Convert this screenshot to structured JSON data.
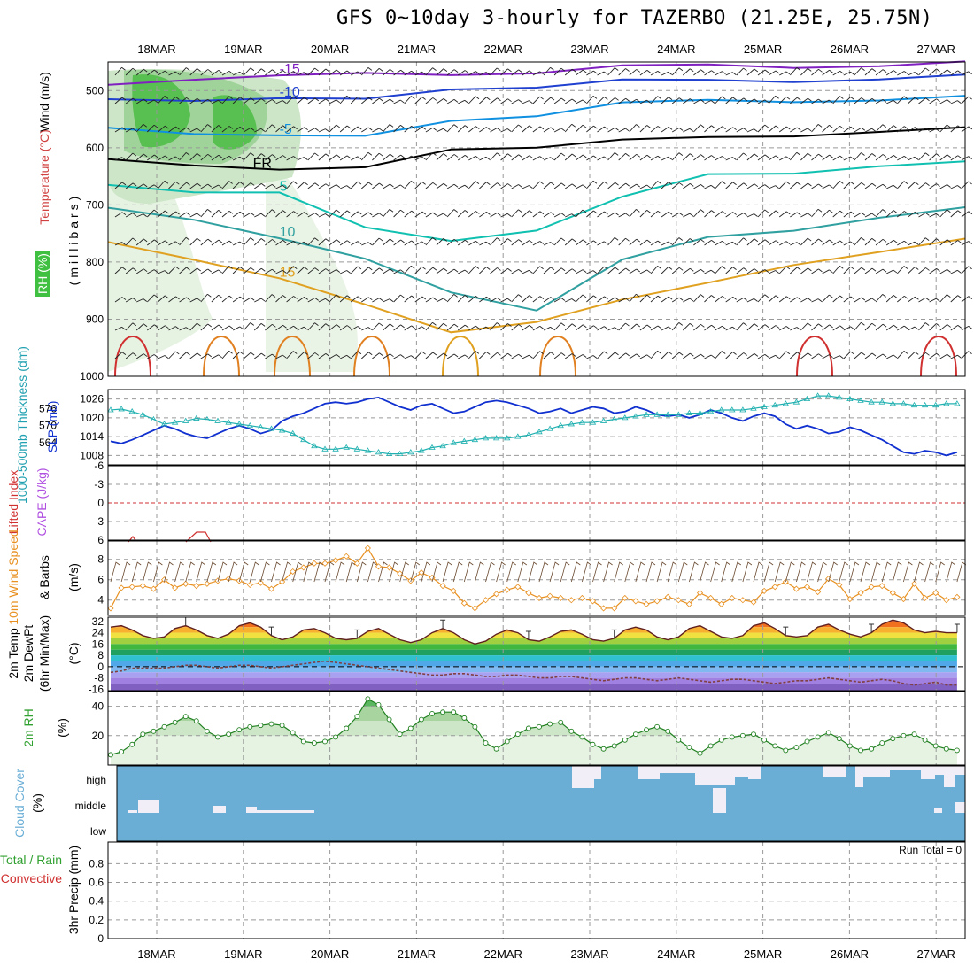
{
  "title": "GFS 0~10day 3-hourly for TAZERBO (21.25E, 25.75N)",
  "dates": [
    "18MAR",
    "19MAR",
    "20MAR",
    "21MAR",
    "22MAR",
    "23MAR",
    "24MAR",
    "25MAR",
    "26MAR",
    "27MAR"
  ],
  "panel_labels": {
    "p1_wind": "Wind (m/s)",
    "p1_temp": "Temperature (°C)",
    "p1_mb": "(millibars)",
    "p1_rh": "RH (%)",
    "p2_thick": "1000-500mb Thickness (dm)",
    "p2_slp": "SLP (mb)",
    "p3_li": "Lifted Index",
    "p3_cape": "CAPE (J/kg)",
    "p4_wind": "10m Wind Speed",
    "p4_barbs": "& Barbs",
    "p4_units": "(m/s)",
    "p5_temp": "2m Temp",
    "p5_dew": "2m DewPt",
    "p5_minmax": "(6hr Min/Max)",
    "p5_units": "(°C)",
    "p6_rh": "2m RH",
    "p6_units": "(%)",
    "p7_cloud": "Cloud Cover",
    "p7_units": "(%)",
    "p8_total": "Total / Rain",
    "p8_conv": "Convective",
    "p8_precip": "3hr Precip (mm)",
    "run_total": "Run Total = 0"
  },
  "colors": {
    "slp": "#1030d0",
    "thick": "#20b0b0",
    "wind": "#e89020",
    "rh": "#30a030",
    "cloud": "#6aaed6",
    "li": "#d03030",
    "cape": "#b050e0"
  },
  "chart_data": [
    {
      "type": "line",
      "title": "Upper air cross-section",
      "ylabel": "(millibars)",
      "ytick_labels": [
        "500",
        "600",
        "700",
        "800",
        "900",
        "1000"
      ],
      "ylim": [
        450,
        1000
      ],
      "temperature_contour_labels": [
        "-15",
        "-10",
        "-5",
        "FR",
        "5",
        "10",
        "15"
      ],
      "contours": [
        {
          "name": "-15",
          "color": "#8020c0",
          "p": [
            490,
            475,
            475,
            475,
            470,
            465,
            460,
            458,
            455,
            455,
            455
          ]
        },
        {
          "name": "-10",
          "color": "#2040d0",
          "p": [
            515,
            512,
            515,
            520,
            495,
            490,
            485,
            485,
            480,
            478,
            478
          ]
        },
        {
          "name": "-5",
          "color": "#1090e0",
          "p": [
            565,
            570,
            580,
            585,
            550,
            540,
            525,
            520,
            515,
            515,
            515
          ]
        },
        {
          "name": "FR",
          "color": "#000000",
          "p": [
            620,
            625,
            640,
            640,
            600,
            595,
            590,
            585,
            575,
            570,
            570
          ]
        },
        {
          "name": "5",
          "color": "#10c0b0",
          "p": [
            665,
            672,
            680,
            745,
            760,
            740,
            690,
            650,
            640,
            630,
            630
          ]
        },
        {
          "name": "10",
          "color": "#30a0a0",
          "p": [
            705,
            720,
            760,
            800,
            850,
            880,
            800,
            760,
            740,
            720,
            710
          ]
        },
        {
          "name": "15",
          "color": "#e0a020",
          "p": [
            765,
            790,
            830,
            880,
            920,
            900,
            870,
            840,
            800,
            780,
            765
          ]
        }
      ]
    },
    {
      "type": "line",
      "ylabel": "1000-500mb Thickness (dm) / SLP (mb)",
      "ytick_labels_left": [
        "576",
        "570",
        "564"
      ],
      "ytick_labels_right": [
        "1026",
        "1020",
        "1014",
        "1008"
      ],
      "ylim": [
        1005,
        1029
      ],
      "x": [
        0,
        1,
        2,
        3,
        4,
        5,
        6,
        7,
        8,
        9,
        10,
        11,
        12,
        13,
        14,
        15,
        16,
        17,
        18,
        19,
        20,
        21,
        22,
        23,
        24,
        25,
        26,
        27,
        28,
        29,
        30,
        31,
        32,
        33,
        34,
        35,
        36,
        37,
        38,
        39,
        40,
        41,
        42,
        43,
        44,
        45,
        46,
        47,
        48,
        49,
        50,
        51,
        52,
        53,
        54,
        55,
        56,
        57,
        58,
        59,
        60,
        61,
        62,
        63,
        64,
        65,
        66,
        67,
        68,
        69,
        70,
        71,
        72,
        73,
        74,
        75,
        76,
        77,
        78,
        79
      ],
      "series": [
        {
          "name": "SLP (mb)",
          "values": [
            1012.5,
            1011.8,
            1013,
            1014.5,
            1016,
            1017.5,
            1016.5,
            1015,
            1014,
            1013.5,
            1015,
            1016.5,
            1017.5,
            1016.5,
            1015,
            1016,
            1019,
            1020.5,
            1021.5,
            1023,
            1024.5,
            1025,
            1024.5,
            1025,
            1026,
            1026.5,
            1025,
            1023.5,
            1022.5,
            1024,
            1024.5,
            1023,
            1021.5,
            1022,
            1023.5,
            1025,
            1025.5,
            1025,
            1024,
            1023,
            1021.5,
            1022,
            1023,
            1021.5,
            1022.5,
            1023.5,
            1023,
            1021.5,
            1022,
            1023.5,
            1022.5,
            1021,
            1020.5,
            1021,
            1020,
            1021,
            1022.5,
            1021.5,
            1020,
            1019,
            1020.5,
            1021.5,
            1020.5,
            1018,
            1016.5,
            1017.5,
            1016.5,
            1015,
            1015.5,
            1017,
            1016,
            1014.5,
            1013,
            1011,
            1009,
            1008.5,
            1009.5,
            1009,
            1008,
            1009
          ]
        },
        {
          "name": "1000-500mb Thickness (dm)",
          "values": [
            1022.5,
            1022.8,
            1022,
            1021,
            1019.5,
            1018,
            1018.5,
            1019,
            1019.8,
            1019.5,
            1019,
            1018.5,
            1018,
            1017.5,
            1017,
            1016.5,
            1016,
            1015,
            1013,
            1011,
            1010,
            1010,
            1010.5,
            1010,
            1009.5,
            1009,
            1008.5,
            1008.5,
            1009,
            1009.5,
            1010.5,
            1011,
            1012,
            1012.5,
            1013,
            1013.5,
            1013.5,
            1013.5,
            1014,
            1014.5,
            1015.5,
            1016.5,
            1017.5,
            1018,
            1018.5,
            1018.5,
            1019,
            1019.5,
            1020,
            1020.5,
            1021,
            1021,
            1021,
            1021,
            1021.5,
            1021.5,
            1022,
            1022.5,
            1022.5,
            1022.5,
            1023,
            1023.5,
            1024,
            1024.5,
            1025,
            1026,
            1027,
            1027,
            1026.5,
            1026,
            1025.5,
            1025,
            1025,
            1024.5,
            1024.5,
            1024,
            1024,
            1024,
            1024.5,
            1024.5
          ]
        }
      ]
    },
    {
      "type": "line",
      "ylabel": "Lifted Index / CAPE (J/kg)",
      "ytick_labels": [
        "6",
        "3",
        "0",
        "-3",
        "-6"
      ],
      "ylim": [
        -6,
        6
      ],
      "series": [
        {
          "name": "Lifted Index",
          "x": [
            1.5,
            2.3,
            7.6,
            8.1,
            8.8,
            9.4
          ],
          "values": [
            -5.5,
            -6,
            -5,
            -4,
            -4,
            -6
          ]
        }
      ]
    },
    {
      "type": "line",
      "ylabel": "10m Wind Speed & Barbs (m/s)",
      "ytick_labels": [
        "8",
        "6",
        "4"
      ],
      "ylim": [
        2.5,
        9.8
      ],
      "series": [
        {
          "name": "10m Wind Speed",
          "values": [
            3.2,
            5.2,
            5.3,
            5.4,
            5.1,
            6,
            5.2,
            5.6,
            5.4,
            5.6,
            5.9,
            6.1,
            5.9,
            5.5,
            5.7,
            5.1,
            5.8,
            6.8,
            7.2,
            7.6,
            7.6,
            7.9,
            8.3,
            7.6,
            9.1,
            7.3,
            7.2,
            6.6,
            5.9,
            6.7,
            6.2,
            5.4,
            4.9,
            3.7,
            3.2,
            4,
            4.6,
            5,
            5.3,
            4.7,
            4.2,
            4.4,
            4.2,
            4,
            4.2,
            3.9,
            3.2,
            3.2,
            4.2,
            3.9,
            3.6,
            3.9,
            4.3,
            4,
            3.6,
            4.7,
            4.2,
            3.6,
            4.2,
            4,
            3.8,
            4.9,
            5.3,
            5.8,
            5.1,
            5.3,
            4.8,
            6.1,
            5.5,
            4.1,
            4.7,
            5.3,
            5.4,
            4.7,
            4.1,
            5.6,
            4.2,
            4.7,
            4,
            4.3
          ]
        }
      ]
    },
    {
      "type": "area",
      "ylabel": "2m Temp / 2m DewPt (6hr Min/Max) (°C)",
      "ytick_labels": [
        "32",
        "24",
        "16",
        "8",
        "0",
        "-8",
        "-16"
      ],
      "ylim": [
        -17,
        35
      ],
      "series": [
        {
          "name": "2m Temp",
          "values": [
            28,
            29,
            26,
            22,
            20,
            21,
            27,
            29,
            26,
            22,
            20,
            23,
            29,
            31,
            28,
            22,
            19,
            21,
            26,
            27,
            24,
            20,
            19,
            20,
            25,
            27,
            23,
            19,
            17,
            19,
            24,
            27,
            24,
            19,
            16,
            18,
            23,
            26,
            24,
            19,
            18,
            21,
            25,
            26,
            23,
            19,
            18,
            20,
            26,
            28,
            26,
            21,
            19,
            21,
            27,
            29,
            25,
            21,
            20,
            22,
            29,
            31,
            27,
            22,
            21,
            22,
            28,
            30,
            26,
            23,
            21,
            24,
            30,
            33,
            31,
            26,
            24,
            25,
            24,
            24
          ]
        },
        {
          "name": "2m DewPt",
          "values": [
            -4,
            -3,
            -1,
            -1,
            -1,
            -1,
            0,
            1,
            1,
            0,
            -1,
            0,
            1,
            1,
            0,
            -1,
            0,
            1,
            2,
            3,
            4,
            3,
            2,
            1,
            0,
            -1,
            -2,
            -3,
            -4,
            -5,
            -6,
            -6,
            -5,
            -5,
            -6,
            -7,
            -7,
            -6,
            -6,
            -7,
            -8,
            -8,
            -7,
            -7,
            -8,
            -9,
            -10,
            -9,
            -8,
            -8,
            -9,
            -10,
            -9,
            -8,
            -9,
            -10,
            -11,
            -10,
            -9,
            -9,
            -10,
            -11,
            -12,
            -11,
            -10,
            -10,
            -9,
            -8,
            -9,
            -10,
            -11,
            -10,
            -9,
            -10,
            -12,
            -13,
            -12,
            -11,
            -13,
            -13
          ]
        }
      ]
    },
    {
      "type": "area",
      "ylabel": "2m RH (%)",
      "ytick_labels": [
        "40",
        "20"
      ],
      "ylim": [
        0,
        50
      ],
      "series": [
        {
          "name": "2m RH",
          "values": [
            7,
            9,
            14,
            21,
            23,
            26,
            29,
            33,
            30,
            23,
            19,
            21,
            24,
            26,
            27,
            28,
            27,
            22,
            16,
            15,
            16,
            19,
            25,
            33,
            45,
            41,
            31,
            21,
            25,
            31,
            35,
            36,
            36,
            32,
            26,
            15,
            11,
            16,
            21,
            25,
            26,
            28,
            29,
            23,
            19,
            14,
            11,
            13,
            17,
            21,
            24,
            26,
            23,
            17,
            12,
            8,
            13,
            17,
            19,
            20,
            21,
            17,
            13,
            10,
            12,
            16,
            19,
            22,
            18,
            13,
            10,
            11,
            15,
            18,
            20,
            21,
            17,
            13,
            11,
            10
          ]
        }
      ]
    },
    {
      "type": "bar",
      "ylabel": "Cloud Cover (%)",
      "ytick_labels": [
        "high",
        "middle",
        "low"
      ],
      "ylim": [
        0,
        100
      ]
    },
    {
      "type": "bar",
      "ylabel": "3hr Precip (mm)",
      "ytick_labels": [
        "0.8",
        "0.6",
        "0.4",
        "0.2",
        "0"
      ],
      "ylim": [
        0,
        1
      ]
    }
  ]
}
